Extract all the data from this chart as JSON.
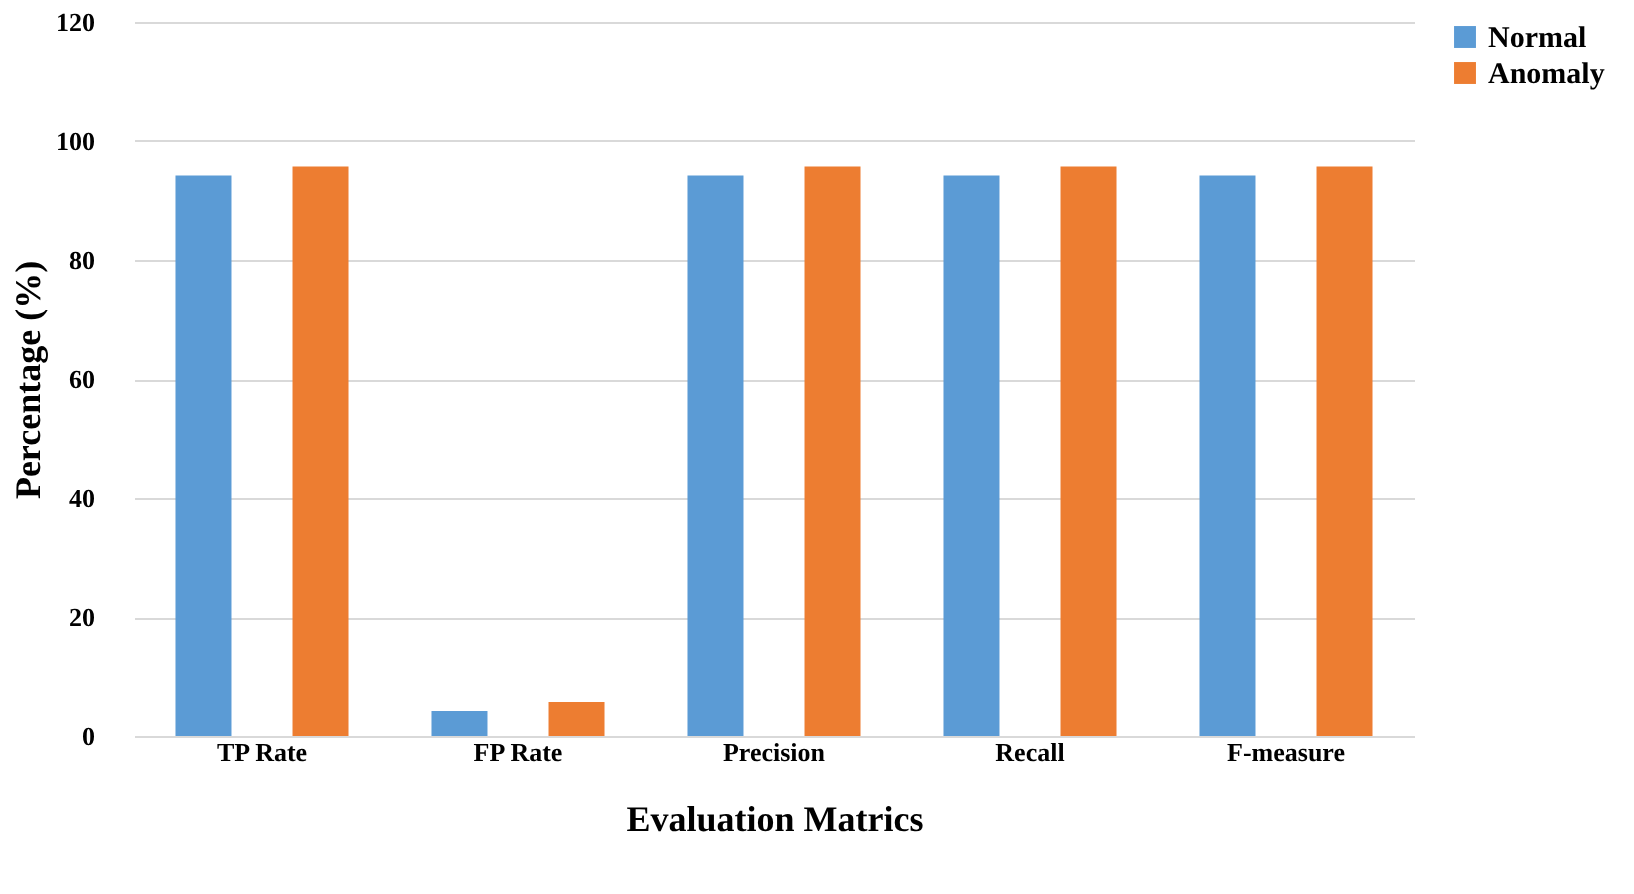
{
  "chart_data": {
    "type": "bar",
    "xlabel": "Evaluation Matrics",
    "ylabel": "Percentage (%)",
    "categories": [
      "TP Rate",
      "FP Rate",
      "Precision",
      "Recall",
      "F-measure"
    ],
    "series": [
      {
        "name": "Normal",
        "color": "#5b9bd5",
        "values": [
          94.2,
          4.2,
          94.2,
          94.2,
          94.2
        ]
      },
      {
        "name": "Anomaly",
        "color": "#ed7d31",
        "values": [
          95.7,
          5.7,
          95.7,
          95.7,
          95.7
        ]
      }
    ],
    "ylim": [
      0,
      120
    ],
    "yticks": [
      0,
      20,
      40,
      60,
      80,
      100,
      120
    ],
    "grid": "y",
    "legend": "right"
  }
}
